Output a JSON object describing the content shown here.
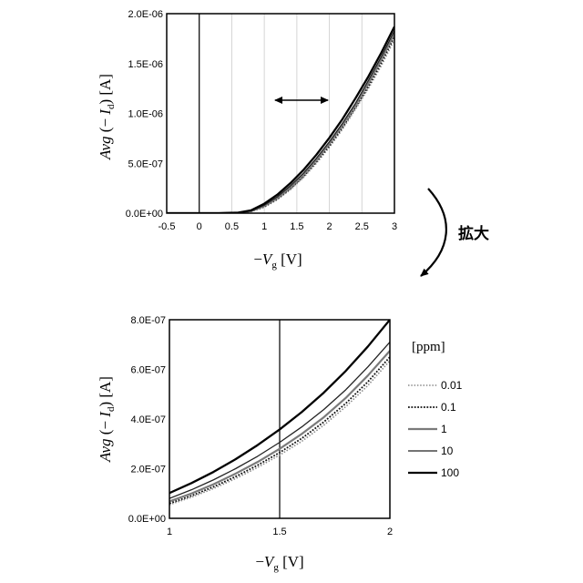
{
  "chart_data": [
    {
      "type": "line",
      "xlim": [
        -0.5,
        3
      ],
      "ylim": [
        0,
        2e-06
      ],
      "x_ticks": [
        "-0.5",
        "0",
        "0.5",
        "1",
        "1.5",
        "2",
        "2.5",
        "3"
      ],
      "y_ticks": [
        "0.0E+00",
        "5.0E-07",
        "1.0E-06",
        "1.5E-06",
        "2.0E-06"
      ],
      "xlabel": {
        "prefix": "−",
        "var": "V",
        "sub": "g",
        "unit": " [V]"
      },
      "ylabel": {
        "var": "Avg",
        "mid": "(− ",
        "var2": "I",
        "sub": "d",
        "end": ") [A]"
      },
      "grid": "vertical",
      "vline_x": 0,
      "annotation": "double-headed arrow",
      "series": [
        {
          "name": "0.01",
          "style": "dotted-gray",
          "points": [
            [
              -0.5,
              0
            ],
            [
              0.3,
              0
            ],
            [
              0.6,
              3e-09
            ],
            [
              0.8,
              1.7e-08
            ],
            [
              1.0,
              6e-08
            ],
            [
              1.2,
              1.35e-07
            ],
            [
              1.4,
              2.35e-07
            ],
            [
              1.6,
              3.55e-07
            ],
            [
              1.8,
              5e-07
            ],
            [
              2.0,
              6.6e-07
            ],
            [
              2.2,
              8.4e-07
            ],
            [
              2.4,
              1.04e-06
            ],
            [
              2.6,
              1.25e-06
            ],
            [
              2.8,
              1.48e-06
            ],
            [
              3.0,
              1.74e-06
            ]
          ]
        },
        {
          "name": "0.1",
          "style": "dotted-black",
          "points": [
            [
              -0.5,
              0
            ],
            [
              0.3,
              0
            ],
            [
              0.6,
              3.5e-09
            ],
            [
              0.8,
              1.9e-08
            ],
            [
              1.0,
              6.6e-08
            ],
            [
              1.2,
              1.43e-07
            ],
            [
              1.4,
              2.46e-07
            ],
            [
              1.6,
              3.68e-07
            ],
            [
              1.8,
              5.14e-07
            ],
            [
              2.0,
              6.76e-07
            ],
            [
              2.2,
              8.58e-07
            ],
            [
              2.4,
              1.06e-06
            ],
            [
              2.6,
              1.27e-06
            ],
            [
              2.8,
              1.51e-06
            ],
            [
              3.0,
              1.77e-06
            ]
          ]
        },
        {
          "name": "1",
          "style": "solid-gray",
          "points": [
            [
              -0.5,
              0
            ],
            [
              0.3,
              0
            ],
            [
              0.6,
              4e-09
            ],
            [
              0.8,
              2.1e-08
            ],
            [
              1.0,
              7.2e-08
            ],
            [
              1.2,
              1.52e-07
            ],
            [
              1.4,
              2.58e-07
            ],
            [
              1.6,
              3.82e-07
            ],
            [
              1.8,
              5.3e-07
            ],
            [
              2.0,
              6.94e-07
            ],
            [
              2.2,
              8.78e-07
            ],
            [
              2.4,
              1.08e-06
            ],
            [
              2.6,
              1.3e-06
            ],
            [
              2.8,
              1.54e-06
            ],
            [
              3.0,
              1.8e-06
            ]
          ]
        },
        {
          "name": "10",
          "style": "solid-thin",
          "points": [
            [
              -0.5,
              0
            ],
            [
              0.3,
              0
            ],
            [
              0.6,
              4.5e-09
            ],
            [
              0.8,
              2.4e-08
            ],
            [
              1.0,
              8e-08
            ],
            [
              1.2,
              1.64e-07
            ],
            [
              1.4,
              2.74e-07
            ],
            [
              1.6,
              4e-07
            ],
            [
              1.8,
              5.5e-07
            ],
            [
              2.0,
              7.16e-07
            ],
            [
              2.2,
              9e-07
            ],
            [
              2.4,
              1.1e-06
            ],
            [
              2.6,
              1.33e-06
            ],
            [
              2.8,
              1.57e-06
            ],
            [
              3.0,
              1.83e-06
            ]
          ]
        },
        {
          "name": "100",
          "style": "solid-thick",
          "points": [
            [
              -0.5,
              0
            ],
            [
              0.3,
              0
            ],
            [
              0.6,
              5.5e-09
            ],
            [
              0.8,
              2.9e-08
            ],
            [
              1.0,
              9.5e-08
            ],
            [
              1.2,
              1.85e-07
            ],
            [
              1.4,
              3e-07
            ],
            [
              1.6,
              4.32e-07
            ],
            [
              1.8,
              5.85e-07
            ],
            [
              2.0,
              7.55e-07
            ],
            [
              2.2,
              9.42e-07
            ],
            [
              2.4,
              1.15e-06
            ],
            [
              2.6,
              1.37e-06
            ],
            [
              2.8,
              1.61e-06
            ],
            [
              3.0,
              1.87e-06
            ]
          ]
        }
      ]
    },
    {
      "type": "line",
      "xlim": [
        1,
        2
      ],
      "ylim": [
        0,
        8e-07
      ],
      "x_ticks": [
        "1",
        "1.5",
        "2"
      ],
      "y_ticks": [
        "0.0E+00",
        "2.0E-07",
        "4.0E-07",
        "6.0E-07",
        "8.0E-07"
      ],
      "xlabel": {
        "prefix": "−",
        "var": "V",
        "sub": "g",
        "unit": " [V]"
      },
      "ylabel": {
        "var": "Avg",
        "mid": "(− ",
        "var2": "I",
        "sub": "d",
        "end": ") [A]"
      },
      "grid": "vertical",
      "vline_x": 1.5,
      "legend_title": "[ppm]",
      "legend_position": "right",
      "series": [
        {
          "name": "0.01",
          "style": "dotted-gray",
          "points": [
            [
              1.0,
              5.5e-08
            ],
            [
              1.1,
              8.5e-08
            ],
            [
              1.2,
              1.2e-07
            ],
            [
              1.3,
              1.6e-07
            ],
            [
              1.4,
              2.05e-07
            ],
            [
              1.5,
              2.55e-07
            ],
            [
              1.6,
              3.1e-07
            ],
            [
              1.7,
              3.75e-07
            ],
            [
              1.8,
              4.5e-07
            ],
            [
              1.9,
              5.35e-07
            ],
            [
              2.0,
              6.35e-07
            ]
          ]
        },
        {
          "name": "0.1",
          "style": "dotted-black",
          "points": [
            [
              1.0,
              6e-08
            ],
            [
              1.1,
              9.1e-08
            ],
            [
              1.2,
              1.27e-07
            ],
            [
              1.3,
              1.68e-07
            ],
            [
              1.4,
              2.14e-07
            ],
            [
              1.5,
              2.65e-07
            ],
            [
              1.6,
              3.22e-07
            ],
            [
              1.7,
              3.88e-07
            ],
            [
              1.8,
              4.63e-07
            ],
            [
              1.9,
              5.5e-07
            ],
            [
              2.0,
              6.5e-07
            ]
          ]
        },
        {
          "name": "1",
          "style": "solid-gray",
          "points": [
            [
              1.0,
              6.8e-08
            ],
            [
              1.1,
              1e-07
            ],
            [
              1.2,
              1.37e-07
            ],
            [
              1.3,
              1.8e-07
            ],
            [
              1.4,
              2.27e-07
            ],
            [
              1.5,
              2.8e-07
            ],
            [
              1.6,
              3.4e-07
            ],
            [
              1.7,
              4.07e-07
            ],
            [
              1.8,
              4.85e-07
            ],
            [
              1.9,
              5.75e-07
            ],
            [
              2.0,
              6.75e-07
            ]
          ]
        },
        {
          "name": "10",
          "style": "solid-thin",
          "points": [
            [
              1.0,
              8e-08
            ],
            [
              1.1,
              1.15e-07
            ],
            [
              1.2,
              1.55e-07
            ],
            [
              1.3,
              2e-07
            ],
            [
              1.4,
              2.5e-07
            ],
            [
              1.5,
              3.06e-07
            ],
            [
              1.6,
              3.68e-07
            ],
            [
              1.7,
              4.38e-07
            ],
            [
              1.8,
              5.18e-07
            ],
            [
              1.9,
              6.1e-07
            ],
            [
              2.0,
              7.1e-07
            ]
          ]
        },
        {
          "name": "100",
          "style": "solid-thick",
          "points": [
            [
              1.0,
              1.02e-07
            ],
            [
              1.1,
              1.42e-07
            ],
            [
              1.2,
              1.87e-07
            ],
            [
              1.3,
              2.38e-07
            ],
            [
              1.4,
              2.95e-07
            ],
            [
              1.5,
              3.58e-07
            ],
            [
              1.6,
              4.28e-07
            ],
            [
              1.7,
              5.06e-07
            ],
            [
              1.8,
              5.94e-07
            ],
            [
              1.9,
              6.92e-07
            ],
            [
              2.0,
              8e-07
            ]
          ]
        }
      ]
    }
  ],
  "zoom_note": "拡大"
}
